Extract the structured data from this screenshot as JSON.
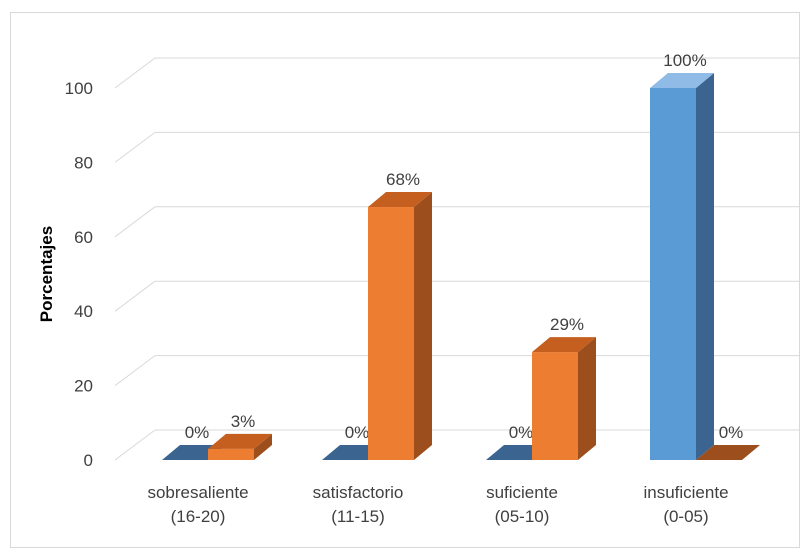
{
  "chart_data": {
    "type": "bar",
    "ylabel": "Porcentajes",
    "ylim": [
      0,
      100
    ],
    "yticks": [
      0,
      20,
      40,
      60,
      80,
      100
    ],
    "grid": true,
    "legend": "none",
    "categories": [
      [
        "sobresaliente",
        "(16-20)"
      ],
      [
        "satisfactorio",
        "(11-15)"
      ],
      [
        "suficiente",
        "(05-10)"
      ],
      [
        "insuficiente",
        "(0-05)"
      ]
    ],
    "series": [
      {
        "values": [
          0,
          0,
          0,
          100
        ],
        "labels": [
          "0%",
          "0%",
          "0%",
          "100%"
        ],
        "color": "#5b9bd5",
        "side_color": "#3b6590",
        "top_color": "#8fbbe6"
      },
      {
        "values": [
          3,
          68,
          29,
          0
        ],
        "labels": [
          "3%",
          "68%",
          "29%",
          "0%"
        ],
        "color": "#ed7d31",
        "side_color": "#9c4f1c",
        "top_color": "#c45f1f"
      }
    ]
  }
}
